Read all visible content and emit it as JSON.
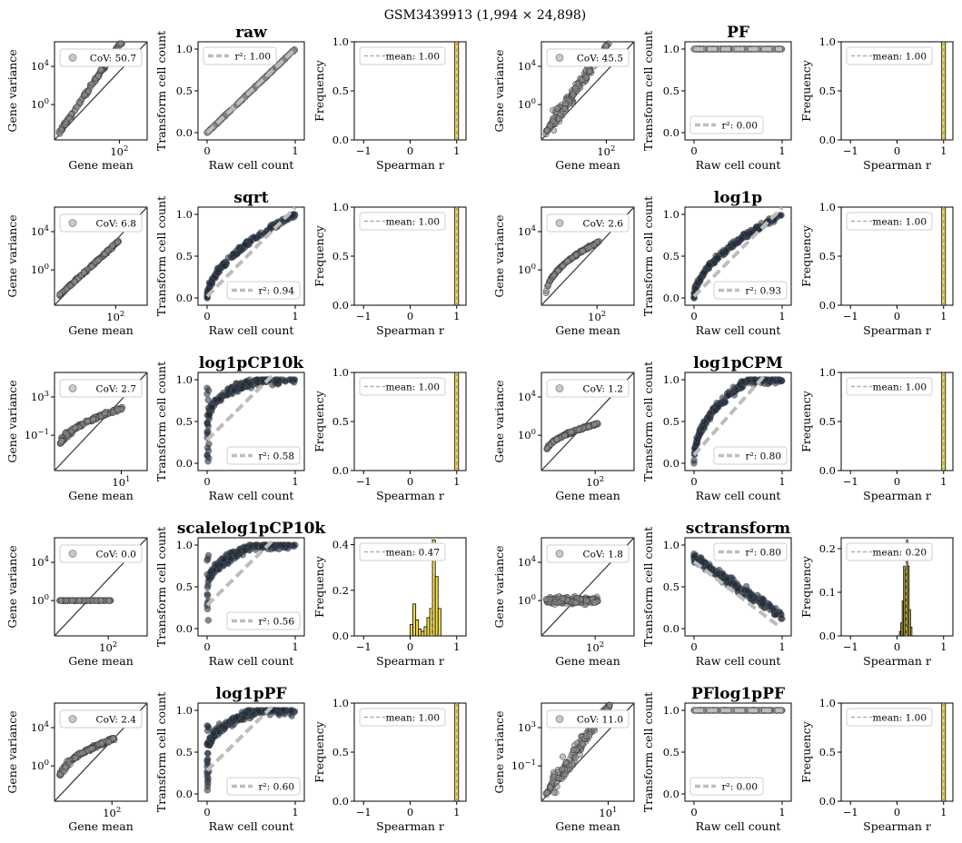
{
  "figure_title": "GSM3439913 (1,994 × 24,898)",
  "colors": {
    "point": "#8c8c8c",
    "dark_point": "#1b2a3c",
    "fit": "#bdbdbd",
    "bar": "#f4de4d",
    "bar_edge": "#000000",
    "identity": "#444444"
  },
  "labels": {
    "gene_mean": "Gene mean",
    "gene_variance": "Gene variance",
    "raw_cell_count": "Raw cell count",
    "transform_cell_count": "Transform cell count",
    "spearman_r": "Spearman r",
    "frequency": "Frequency"
  },
  "chart_data": [
    {
      "type": "scatter",
      "row": 0,
      "block": 0,
      "panel": "mean-variance",
      "xscale": "log",
      "yscale": "log",
      "yticks": [
        "10^4",
        "10^0"
      ],
      "xticks": [
        "10^2"
      ],
      "legend": "CoV: 50.7",
      "shape": "power",
      "extent": 0.7
    },
    {
      "type": "scatter",
      "row": 0,
      "block": 0,
      "panel": "transform",
      "title": "raw",
      "xlim": [
        0,
        1
      ],
      "ylim": [
        0,
        1
      ],
      "xticks": [
        "0",
        "1"
      ],
      "yticks": [
        "0.0",
        "0.5",
        "1.0"
      ],
      "legend": "r²: 1.00",
      "legend_loc": "upper-left",
      "shape": "linear"
    },
    {
      "type": "bar",
      "row": 0,
      "block": 0,
      "panel": "spearman",
      "xlim": [
        -1.2,
        1.2
      ],
      "xticks": [
        "−1",
        "0",
        "1"
      ],
      "ylim": [
        0,
        1
      ],
      "yticks": [
        "0.0",
        "0.5",
        "1.0"
      ],
      "legend": "mean: 1.00",
      "mean": 1.0,
      "bins": [
        [
          0.96,
          1.04,
          1.0
        ]
      ]
    },
    {
      "type": "scatter",
      "row": 0,
      "block": 1,
      "panel": "mean-variance",
      "xscale": "log",
      "yscale": "log",
      "yticks": [
        "10^4",
        "10^0"
      ],
      "xticks": [
        "10^2"
      ],
      "legend": "CoV: 45.5",
      "shape": "wedge",
      "extent": 0.7
    },
    {
      "type": "scatter",
      "row": 0,
      "block": 1,
      "panel": "transform",
      "title": "PF",
      "xlim": [
        0,
        1
      ],
      "ylim": [
        0,
        1
      ],
      "xticks": [
        "0",
        "1"
      ],
      "yticks": [
        "0.0",
        "0.5",
        "1.0"
      ],
      "legend": "r²: 0.00",
      "legend_loc": "lower-left",
      "shape": "flat"
    },
    {
      "type": "bar",
      "row": 0,
      "block": 1,
      "panel": "spearman",
      "xlim": [
        -1.2,
        1.2
      ],
      "xticks": [
        "−1",
        "0",
        "1"
      ],
      "ylim": [
        0,
        1
      ],
      "yticks": [
        "0.0",
        "0.5",
        "1.0"
      ],
      "legend": "mean: 1.00",
      "mean": 1.0,
      "bins": [
        [
          0.96,
          1.04,
          1.0
        ]
      ]
    },
    {
      "type": "scatter",
      "row": 1,
      "block": 0,
      "panel": "mean-variance",
      "xscale": "log",
      "yscale": "log",
      "yticks": [
        "10^4",
        "10^0"
      ],
      "xticks": [
        "10^2"
      ],
      "legend": "CoV: 6.8",
      "shape": "narrow",
      "extent": 0.66
    },
    {
      "type": "scatter",
      "row": 1,
      "block": 0,
      "panel": "transform",
      "title": "sqrt",
      "xlim": [
        0,
        1
      ],
      "ylim": [
        0,
        1
      ],
      "xticks": [
        "0",
        "1"
      ],
      "yticks": [
        "0.0",
        "0.5",
        "1.0"
      ],
      "legend": "r²: 0.94",
      "legend_loc": "lower-right",
      "shape": "sqrt"
    },
    {
      "type": "bar",
      "row": 1,
      "block": 0,
      "panel": "spearman",
      "xlim": [
        -1.2,
        1.2
      ],
      "xticks": [
        "−1",
        "0",
        "1"
      ],
      "ylim": [
        0,
        1
      ],
      "yticks": [
        "0.0",
        "0.5",
        "1.0"
      ],
      "legend": "mean: 1.00",
      "mean": 1.0,
      "bins": [
        [
          0.96,
          1.04,
          1.0
        ]
      ]
    },
    {
      "type": "scatter",
      "row": 1,
      "block": 1,
      "panel": "mean-variance",
      "xscale": "log",
      "yscale": "log",
      "yticks": [
        "10^4",
        "10^0"
      ],
      "xticks": [
        "10^2"
      ],
      "legend": "CoV: 2.6",
      "shape": "narrow-curve",
      "extent": 0.6
    },
    {
      "type": "scatter",
      "row": 1,
      "block": 1,
      "panel": "transform",
      "title": "log1p",
      "xlim": [
        0,
        1
      ],
      "ylim": [
        0,
        1
      ],
      "xticks": [
        "0",
        "1"
      ],
      "yticks": [
        "0.0",
        "0.5",
        "1.0"
      ],
      "legend": "r²: 0.93",
      "legend_loc": "lower-right",
      "shape": "sqrt"
    },
    {
      "type": "bar",
      "row": 1,
      "block": 1,
      "panel": "spearman",
      "xlim": [
        -1.2,
        1.2
      ],
      "xticks": [
        "−1",
        "0",
        "1"
      ],
      "ylim": [
        0,
        1
      ],
      "yticks": [
        "0.0",
        "0.5",
        "1.0"
      ],
      "legend": "mean: 1.00",
      "mean": 1.0,
      "bins": [
        [
          0.96,
          1.04,
          1.0
        ]
      ]
    },
    {
      "type": "scatter",
      "row": 2,
      "block": 0,
      "panel": "mean-variance",
      "xscale": "log",
      "yscale": "log",
      "yticks": [
        "10^3",
        "10^-1"
      ],
      "xticks": [
        "10^1"
      ],
      "legend": "CoV: 2.7",
      "shape": "curve-flat",
      "extent": 0.72
    },
    {
      "type": "scatter",
      "row": 2,
      "block": 0,
      "panel": "transform",
      "title": "log1pCP10k",
      "xlim": [
        0,
        1
      ],
      "ylim": [
        0,
        1
      ],
      "xticks": [
        "0",
        "1"
      ],
      "yticks": [
        "0.0",
        "0.5",
        "1.0"
      ],
      "legend": "r²: 0.58",
      "legend_loc": "lower-right",
      "shape": "saturate"
    },
    {
      "type": "bar",
      "row": 2,
      "block": 0,
      "panel": "spearman",
      "xlim": [
        -1.2,
        1.2
      ],
      "xticks": [
        "−1",
        "0",
        "1"
      ],
      "ylim": [
        0,
        1
      ],
      "yticks": [
        "0.0",
        "0.5",
        "1.0"
      ],
      "legend": "mean: 1.00",
      "mean": 1.0,
      "bins": [
        [
          0.96,
          1.04,
          1.0
        ]
      ]
    },
    {
      "type": "scatter",
      "row": 2,
      "block": 1,
      "panel": "mean-variance",
      "xscale": "log",
      "yscale": "log",
      "yticks": [
        "10^4",
        "10^0"
      ],
      "xticks": [
        "10^2"
      ],
      "legend": "CoV: 1.2",
      "shape": "curve-flat2",
      "extent": 0.58
    },
    {
      "type": "scatter",
      "row": 2,
      "block": 1,
      "panel": "transform",
      "title": "log1pCPM",
      "xlim": [
        0,
        1
      ],
      "ylim": [
        0,
        1
      ],
      "xticks": [
        "0",
        "1"
      ],
      "yticks": [
        "0.0",
        "0.5",
        "1.0"
      ],
      "legend": "r²: 0.80",
      "legend_loc": "lower-right",
      "shape": "saturate2"
    },
    {
      "type": "bar",
      "row": 2,
      "block": 1,
      "panel": "spearman",
      "xlim": [
        -1.2,
        1.2
      ],
      "xticks": [
        "−1",
        "0",
        "1"
      ],
      "ylim": [
        0,
        1
      ],
      "yticks": [
        "0.0",
        "0.5",
        "1.0"
      ],
      "legend": "mean: 1.00",
      "mean": 1.0,
      "bins": [
        [
          0.96,
          1.04,
          1.0
        ]
      ]
    },
    {
      "type": "scatter",
      "row": 3,
      "block": 0,
      "panel": "mean-variance",
      "xscale": "log",
      "yscale": "log",
      "yticks": [
        "10^4",
        "10^0"
      ],
      "xticks": [
        "10^2"
      ],
      "legend": "CoV: 0.0",
      "shape": "hline",
      "extent": 0.58
    },
    {
      "type": "scatter",
      "row": 3,
      "block": 0,
      "panel": "transform",
      "title": "scalelog1pCP10k",
      "xlim": [
        0,
        1
      ],
      "ylim": [
        0,
        1
      ],
      "xticks": [
        "0",
        "1"
      ],
      "yticks": [
        "0.0",
        "0.5",
        "1.0"
      ],
      "legend": "r²: 0.56",
      "legend_loc": "lower-right",
      "shape": "saturate"
    },
    {
      "type": "bar",
      "row": 3,
      "block": 0,
      "panel": "spearman",
      "xlim": [
        -1.2,
        1.2
      ],
      "xticks": [
        "−1",
        "0",
        "1"
      ],
      "ylim": [
        0,
        0.43
      ],
      "yticks": [
        "0.0",
        "0.2",
        "0.4"
      ],
      "legend": "mean: 0.47",
      "mean": 0.47,
      "bins": [
        [
          0.0,
          0.06,
          0.05
        ],
        [
          0.06,
          0.12,
          0.14
        ],
        [
          0.12,
          0.18,
          0.07
        ],
        [
          0.18,
          0.24,
          0.03
        ],
        [
          0.24,
          0.3,
          0.02
        ],
        [
          0.3,
          0.36,
          0.04
        ],
        [
          0.36,
          0.42,
          0.08
        ],
        [
          0.42,
          0.48,
          0.12
        ],
        [
          0.48,
          0.54,
          0.42
        ],
        [
          0.54,
          0.6,
          0.26
        ],
        [
          0.6,
          0.66,
          0.12
        ]
      ]
    },
    {
      "type": "scatter",
      "row": 3,
      "block": 1,
      "panel": "mean-variance",
      "xscale": "log",
      "yscale": "log",
      "yticks": [
        "10^4",
        "10^0"
      ],
      "xticks": [
        "10^2"
      ],
      "legend": "CoV: 1.8",
      "shape": "blob",
      "extent": 0.58
    },
    {
      "type": "scatter",
      "row": 3,
      "block": 1,
      "panel": "transform",
      "title": "sctransform",
      "xlim": [
        0,
        1
      ],
      "ylim": [
        0,
        1
      ],
      "xticks": [
        "0",
        "1"
      ],
      "yticks": [
        "0.0",
        "0.5",
        "1.0"
      ],
      "legend": "r²: 0.80",
      "legend_loc": "upper-right",
      "shape": "negative"
    },
    {
      "type": "bar",
      "row": 3,
      "block": 1,
      "panel": "spearman",
      "xlim": [
        -1.2,
        1.2
      ],
      "xticks": [
        "−1",
        "0",
        "1"
      ],
      "ylim": [
        0,
        0.225
      ],
      "yticks": [
        "0.0",
        "0.1",
        "0.2"
      ],
      "legend": "mean: 0.20",
      "mean": 0.2,
      "bins": [
        [
          0.05,
          0.08,
          0.01
        ],
        [
          0.08,
          0.11,
          0.03
        ],
        [
          0.11,
          0.14,
          0.08
        ],
        [
          0.14,
          0.17,
          0.16
        ],
        [
          0.17,
          0.2,
          0.15
        ],
        [
          0.2,
          0.23,
          0.22
        ],
        [
          0.23,
          0.26,
          0.16
        ],
        [
          0.26,
          0.29,
          0.06
        ],
        [
          0.29,
          0.32,
          0.02
        ]
      ]
    },
    {
      "type": "scatter",
      "row": 4,
      "block": 0,
      "panel": "mean-variance",
      "xscale": "log",
      "yscale": "log",
      "yticks": [
        "10^4",
        "10^0"
      ],
      "xticks": [
        "10^2"
      ],
      "legend": "CoV: 2.4",
      "shape": "curve-flat",
      "extent": 0.62
    },
    {
      "type": "scatter",
      "row": 4,
      "block": 0,
      "panel": "transform",
      "title": "log1pPF",
      "xlim": [
        0,
        1
      ],
      "ylim": [
        0,
        1
      ],
      "xticks": [
        "0",
        "1"
      ],
      "yticks": [
        "0.0",
        "0.5",
        "1.0"
      ],
      "legend": "r²: 0.60",
      "legend_loc": "lower-right",
      "shape": "saturate"
    },
    {
      "type": "bar",
      "row": 4,
      "block": 0,
      "panel": "spearman",
      "xlim": [
        -1.2,
        1.2
      ],
      "xticks": [
        "−1",
        "0",
        "1"
      ],
      "ylim": [
        0,
        1
      ],
      "yticks": [
        "0.0",
        "0.5",
        "1.0"
      ],
      "legend": "mean: 1.00",
      "mean": 1.0,
      "bins": [
        [
          0.96,
          1.04,
          1.0
        ]
      ]
    },
    {
      "type": "scatter",
      "row": 4,
      "block": 1,
      "panel": "mean-variance",
      "xscale": "log",
      "yscale": "log",
      "yticks": [
        "10^3",
        "10^-1"
      ],
      "xticks": [
        "10^1"
      ],
      "legend": "CoV: 11.0",
      "shape": "wedge2",
      "extent": 0.72
    },
    {
      "type": "scatter",
      "row": 4,
      "block": 1,
      "panel": "transform",
      "title": "PFlog1pPF",
      "xlim": [
        0,
        1
      ],
      "ylim": [
        0,
        1
      ],
      "xticks": [
        "0",
        "1"
      ],
      "yticks": [
        "0.0",
        "0.5",
        "1.0"
      ],
      "legend": "r²: 0.00",
      "legend_loc": "lower-left",
      "shape": "flat"
    },
    {
      "type": "bar",
      "row": 4,
      "block": 1,
      "panel": "spearman",
      "xlim": [
        -1.2,
        1.2
      ],
      "xticks": [
        "−1",
        "0",
        "1"
      ],
      "ylim": [
        0,
        1
      ],
      "yticks": [
        "0.0",
        "0.5",
        "1.0"
      ],
      "legend": "mean: 1.00",
      "mean": 1.0,
      "bins": [
        [
          0.96,
          1.04,
          1.0
        ]
      ]
    }
  ]
}
